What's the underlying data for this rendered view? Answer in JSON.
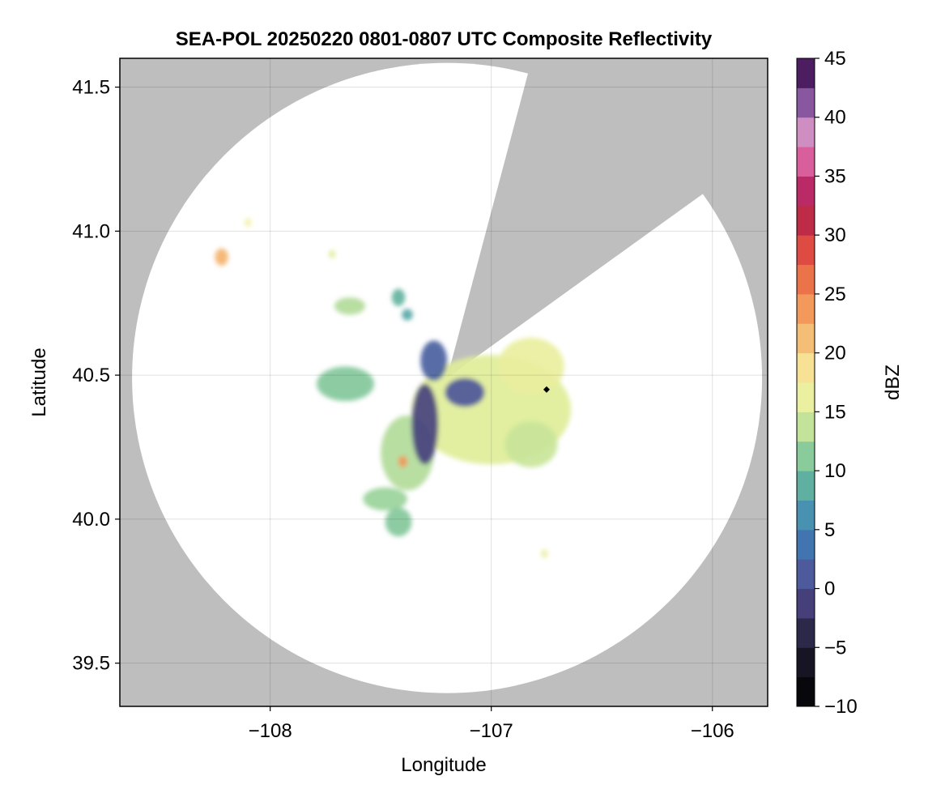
{
  "chart_data": {
    "type": "heatmap",
    "title": "SEA-POL 20250220 0801-0807 UTC Composite Reflectivity",
    "xlabel": "Longitude",
    "ylabel": "Latitude",
    "xlim": [
      -108.68,
      -105.75
    ],
    "ylim": [
      39.35,
      41.6
    ],
    "xticks": [
      -108,
      -107,
      -106
    ],
    "xtick_labels": [
      "−108",
      "−107",
      "−106"
    ],
    "yticks": [
      39.5,
      40.0,
      40.5,
      41.0,
      41.5
    ],
    "ytick_labels": [
      "39.5",
      "40.0",
      "40.5",
      "41.0",
      "41.5"
    ],
    "grid": true,
    "background_color": "#bebebe",
    "radar": {
      "center": [
        -107.2,
        40.49
      ],
      "coverage_circle_color": "#ffffff",
      "blocked_sector": {
        "edge_points": [
          [
            -106.84,
            41.53
          ],
          [
            -106.06,
            41.12
          ]
        ]
      },
      "marker": {
        "lon": -106.75,
        "lat": 40.45,
        "color": "#000000"
      }
    },
    "colorbar": {
      "label": "dBZ",
      "min": -10,
      "max": 45,
      "step": 2.5,
      "ticks": [
        -10,
        -5,
        0,
        5,
        10,
        15,
        20,
        25,
        30,
        35,
        40,
        45
      ],
      "tick_labels": [
        "−10",
        "−5",
        "0",
        "5",
        "10",
        "15",
        "20",
        "25",
        "30",
        "35",
        "40",
        "45"
      ],
      "colors": [
        {
          "value": -10,
          "color": "#000000"
        },
        {
          "value": -5,
          "color": "#1e1c30"
        },
        {
          "value": 0,
          "color": "#524c92"
        },
        {
          "value": 5,
          "color": "#3d82b8"
        },
        {
          "value": 10,
          "color": "#6cbf9b"
        },
        {
          "value": 15,
          "color": "#e0ee99"
        },
        {
          "value": 17.5,
          "color": "#f6f1a6"
        },
        {
          "value": 20,
          "color": "#f6d084"
        },
        {
          "value": 25,
          "color": "#f1874d"
        },
        {
          "value": 30,
          "color": "#d7373e"
        },
        {
          "value": 32.5,
          "color": "#a51f4f"
        },
        {
          "value": 35,
          "color": "#cf357f"
        },
        {
          "value": 38,
          "color": "#e798c5"
        },
        {
          "value": 40,
          "color": "#a77cbc"
        },
        {
          "value": 42.5,
          "color": "#6a2f84"
        },
        {
          "value": 45,
          "color": "#2d0a3e"
        }
      ]
    },
    "echo_regions": [
      {
        "name": "main-core",
        "lon": -107.0,
        "lat": 40.38,
        "rx": 0.36,
        "ry": 0.19,
        "dbz": 15
      },
      {
        "name": "north-east-cell",
        "lon": -106.82,
        "lat": 40.53,
        "rx": 0.15,
        "ry": 0.1,
        "dbz": 16
      },
      {
        "name": "south-cell",
        "lon": -107.38,
        "lat": 40.23,
        "rx": 0.12,
        "ry": 0.13,
        "dbz": 13
      },
      {
        "name": "low-echo-band",
        "lon": -107.3,
        "lat": 40.33,
        "rx": 0.06,
        "ry": 0.14,
        "dbz": -1
      },
      {
        "name": "center-low-echo",
        "lon": -107.12,
        "lat": 40.44,
        "rx": 0.09,
        "ry": 0.05,
        "dbz": 1
      },
      {
        "name": "west-cell",
        "lon": -107.66,
        "lat": 40.47,
        "rx": 0.13,
        "ry": 0.06,
        "dbz": 11
      },
      {
        "name": "southeast-cell",
        "lon": -106.82,
        "lat": 40.26,
        "rx": 0.12,
        "ry": 0.08,
        "dbz": 14
      },
      {
        "name": "south-cluster",
        "lon": -107.48,
        "lat": 40.07,
        "rx": 0.1,
        "ry": 0.04,
        "dbz": 12
      },
      {
        "name": "far-south-cell",
        "lon": -107.42,
        "lat": 39.99,
        "rx": 0.06,
        "ry": 0.05,
        "dbz": 11
      },
      {
        "name": "near-north-cell",
        "lon": -107.26,
        "lat": 40.55,
        "rx": 0.06,
        "ry": 0.07,
        "dbz": 2
      },
      {
        "name": "isolated-nw-a",
        "lon": -108.22,
        "lat": 40.91,
        "rx": 0.03,
        "ry": 0.03,
        "dbz": 22
      },
      {
        "name": "isolated-nw-b",
        "lon": -108.1,
        "lat": 41.03,
        "rx": 0.015,
        "ry": 0.015,
        "dbz": 17
      },
      {
        "name": "isolated-n",
        "lon": -107.72,
        "lat": 40.92,
        "rx": 0.015,
        "ry": 0.015,
        "dbz": 15
      },
      {
        "name": "north-scatter-a",
        "lon": -107.64,
        "lat": 40.74,
        "rx": 0.07,
        "ry": 0.03,
        "dbz": 13
      },
      {
        "name": "north-scatter-b",
        "lon": -107.42,
        "lat": 40.77,
        "rx": 0.03,
        "ry": 0.03,
        "dbz": 9
      },
      {
        "name": "north-scatter-c",
        "lon": -107.38,
        "lat": 40.71,
        "rx": 0.025,
        "ry": 0.02,
        "dbz": 8
      },
      {
        "name": "isolated-se",
        "lon": -106.76,
        "lat": 39.88,
        "rx": 0.015,
        "ry": 0.015,
        "dbz": 16
      },
      {
        "name": "hot-spot",
        "lon": -107.4,
        "lat": 40.2,
        "rx": 0.02,
        "ry": 0.02,
        "dbz": 24
      }
    ]
  }
}
